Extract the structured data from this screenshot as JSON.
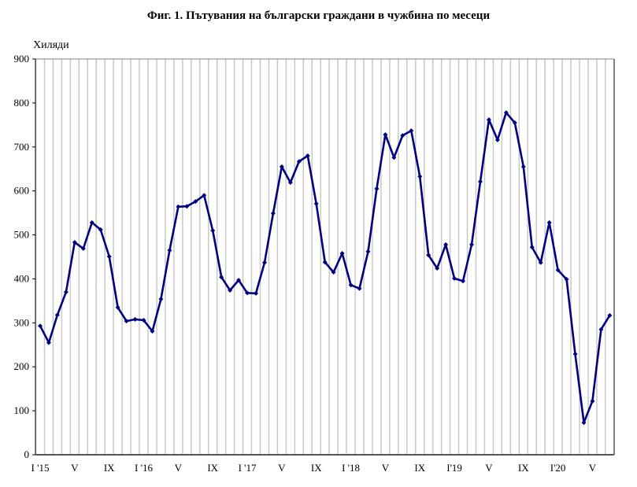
{
  "chart_data": {
    "type": "line",
    "title": "Фиг. 1. Пътувания на български граждани в чужбина по месеци",
    "ylabel": "Хиляди",
    "xlabel": "",
    "ylim": [
      0,
      900
    ],
    "yticks": [
      0,
      100,
      200,
      300,
      400,
      500,
      600,
      700,
      800,
      900
    ],
    "x_tick_labels": [
      {
        "index": 0,
        "label": "I '15"
      },
      {
        "index": 4,
        "label": "V"
      },
      {
        "index": 8,
        "label": "IX"
      },
      {
        "index": 12,
        "label": "I '16"
      },
      {
        "index": 16,
        "label": "V"
      },
      {
        "index": 20,
        "label": "IX"
      },
      {
        "index": 24,
        "label": "I '17"
      },
      {
        "index": 28,
        "label": "V"
      },
      {
        "index": 32,
        "label": "IX"
      },
      {
        "index": 36,
        "label": "I '18"
      },
      {
        "index": 40,
        "label": "V"
      },
      {
        "index": 44,
        "label": "IX"
      },
      {
        "index": 48,
        "label": "I'19"
      },
      {
        "index": 52,
        "label": "V"
      },
      {
        "index": 56,
        "label": "IX"
      },
      {
        "index": 60,
        "label": "I'20"
      },
      {
        "index": 64,
        "label": "V"
      }
    ],
    "grid": "vertical",
    "legend": "none",
    "series": [
      {
        "name": "Пътувания",
        "color": "#000080",
        "start": "I 2015",
        "end": "VII 2020",
        "values": [
          293,
          255,
          318,
          370,
          483,
          469,
          528,
          512,
          451,
          335,
          304,
          308,
          306,
          281,
          354,
          465,
          564,
          565,
          576,
          590,
          510,
          404,
          374,
          397,
          368,
          367,
          437,
          549,
          655,
          619,
          667,
          680,
          571,
          438,
          415,
          458,
          386,
          378,
          462,
          605,
          728,
          676,
          726,
          737,
          633,
          454,
          424,
          478,
          401,
          395,
          478,
          621,
          762,
          716,
          778,
          755,
          655,
          472,
          437,
          528,
          420,
          399,
          229,
          73,
          122,
          285,
          317
        ]
      }
    ]
  },
  "colors": {
    "line": "#000080",
    "grid": "#c8c8c8",
    "axis": "#808080"
  }
}
